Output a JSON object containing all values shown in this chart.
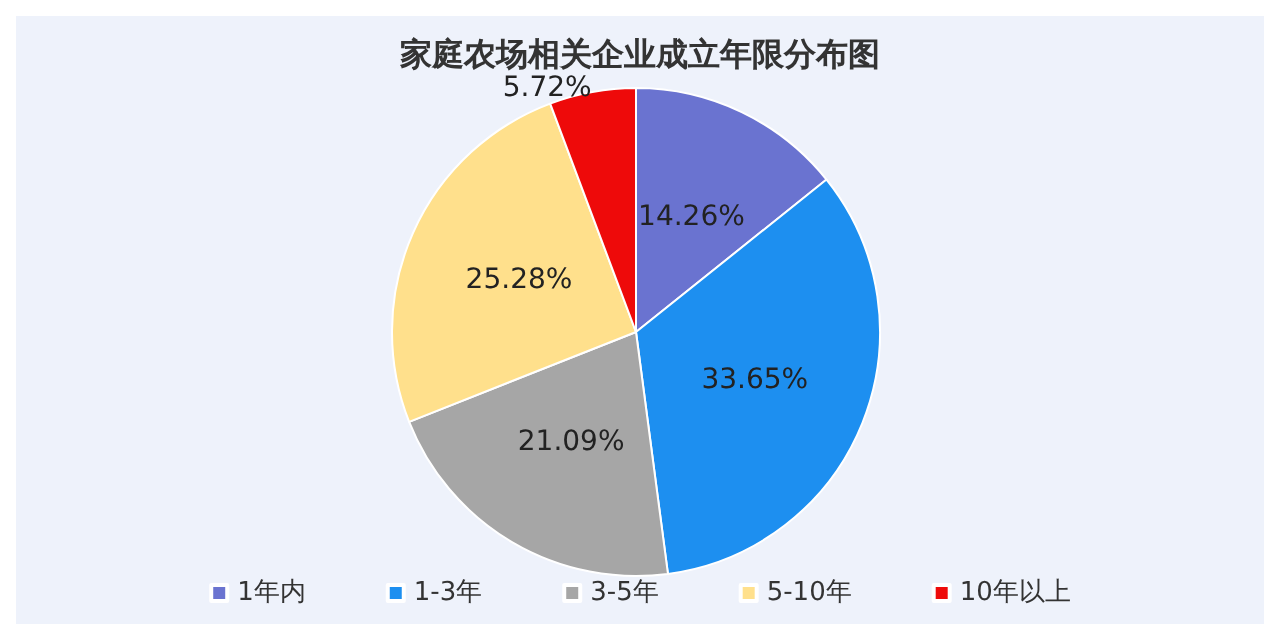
{
  "chart_data": {
    "type": "pie",
    "title": "家庭农场相关企业成立年限分布图",
    "categories": [
      "1年内",
      "1-3年",
      "3-5年",
      "5-10年",
      "10年以上"
    ],
    "values": [
      14.26,
      33.65,
      21.09,
      25.28,
      5.72
    ],
    "colors": [
      "#6a73d0",
      "#1d8ff0",
      "#a6a6a6",
      "#ffe08c",
      "#ee0a0a"
    ],
    "value_labels": [
      "14.26%",
      "33.65%",
      "21.09%",
      "25.28%",
      "5.72%"
    ],
    "legend": "bottom"
  }
}
